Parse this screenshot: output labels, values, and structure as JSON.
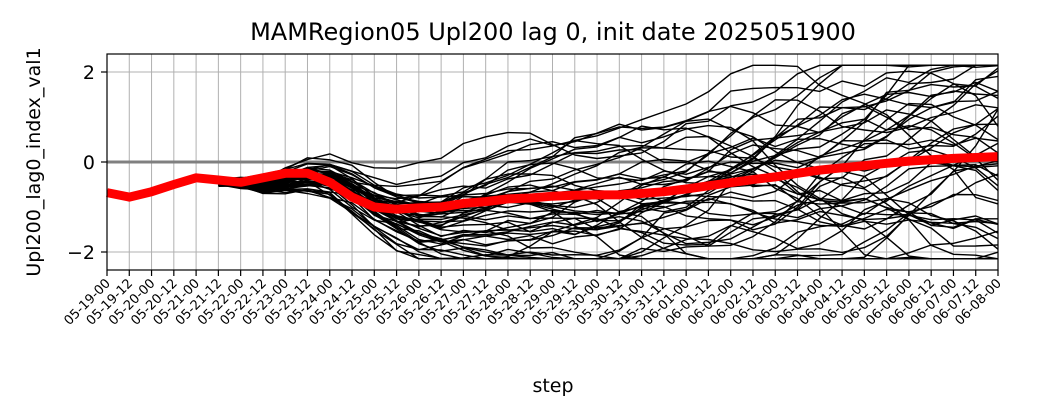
{
  "chart_data": {
    "type": "line",
    "title": "MAMRegion05 Upl200 lag 0, init date 2025051900",
    "xlabel": "step",
    "ylabel": "Upl200_lag0_index_val1",
    "ylim": [
      -2.4,
      2.4
    ],
    "yticks": [
      -2,
      0,
      2
    ],
    "grid": true,
    "zero_line": 0,
    "categories": [
      "05-19-00",
      "05-19-12",
      "05-20-00",
      "05-20-12",
      "05-21-00",
      "05-21-12",
      "05-22-00",
      "05-22-12",
      "05-23-00",
      "05-23-12",
      "05-24-00",
      "05-24-12",
      "05-25-00",
      "05-25-12",
      "05-26-00",
      "05-26-12",
      "05-27-00",
      "05-27-12",
      "05-28-00",
      "05-28-12",
      "05-29-00",
      "05-29-12",
      "05-30-00",
      "05-30-12",
      "05-31-00",
      "05-31-12",
      "06-01-00",
      "06-01-12",
      "06-02-00",
      "06-02-12",
      "06-03-00",
      "06-03-12",
      "06-04-00",
      "06-04-12",
      "06-05-00",
      "06-05-12",
      "06-06-00",
      "06-06-12",
      "06-07-00",
      "06-07-12",
      "06-08-00"
    ],
    "ensemble": {
      "member_count": 50,
      "color": "#000000",
      "ensemble_start_index": 5,
      "base_value": -0.45,
      "early_mean_path": [
        -0.45,
        -0.47,
        -0.5,
        -0.4,
        -0.3,
        -0.32,
        -0.55,
        -0.85,
        -1.05,
        -1.15,
        -1.18,
        -1.12,
        -1.05,
        -0.98,
        -0.92,
        -0.88,
        -0.85,
        -0.84,
        -0.82,
        -0.8,
        -0.78,
        -0.74,
        -0.68,
        -0.6,
        -0.52,
        -0.44,
        -0.36,
        -0.28,
        -0.2,
        -0.14,
        -0.08,
        -0.02,
        0.02,
        0.06,
        0.08,
        0.1
      ],
      "final_spread": 1.3
    },
    "series": [
      {
        "color": "#ff0000",
        "values": [
          -0.68,
          -0.78,
          -0.66,
          -0.5,
          -0.35,
          -0.4,
          -0.45,
          -0.35,
          -0.25,
          -0.25,
          -0.45,
          -0.78,
          -1.0,
          -1.05,
          -1.02,
          -1.0,
          -0.92,
          -0.88,
          -0.82,
          -0.8,
          -0.76,
          -0.74,
          -0.73,
          -0.73,
          -0.7,
          -0.66,
          -0.6,
          -0.53,
          -0.46,
          -0.39,
          -0.33,
          -0.25,
          -0.18,
          -0.13,
          -0.08,
          -0.03,
          0.02,
          0.05,
          0.08,
          0.1,
          0.12
        ]
      }
    ]
  }
}
